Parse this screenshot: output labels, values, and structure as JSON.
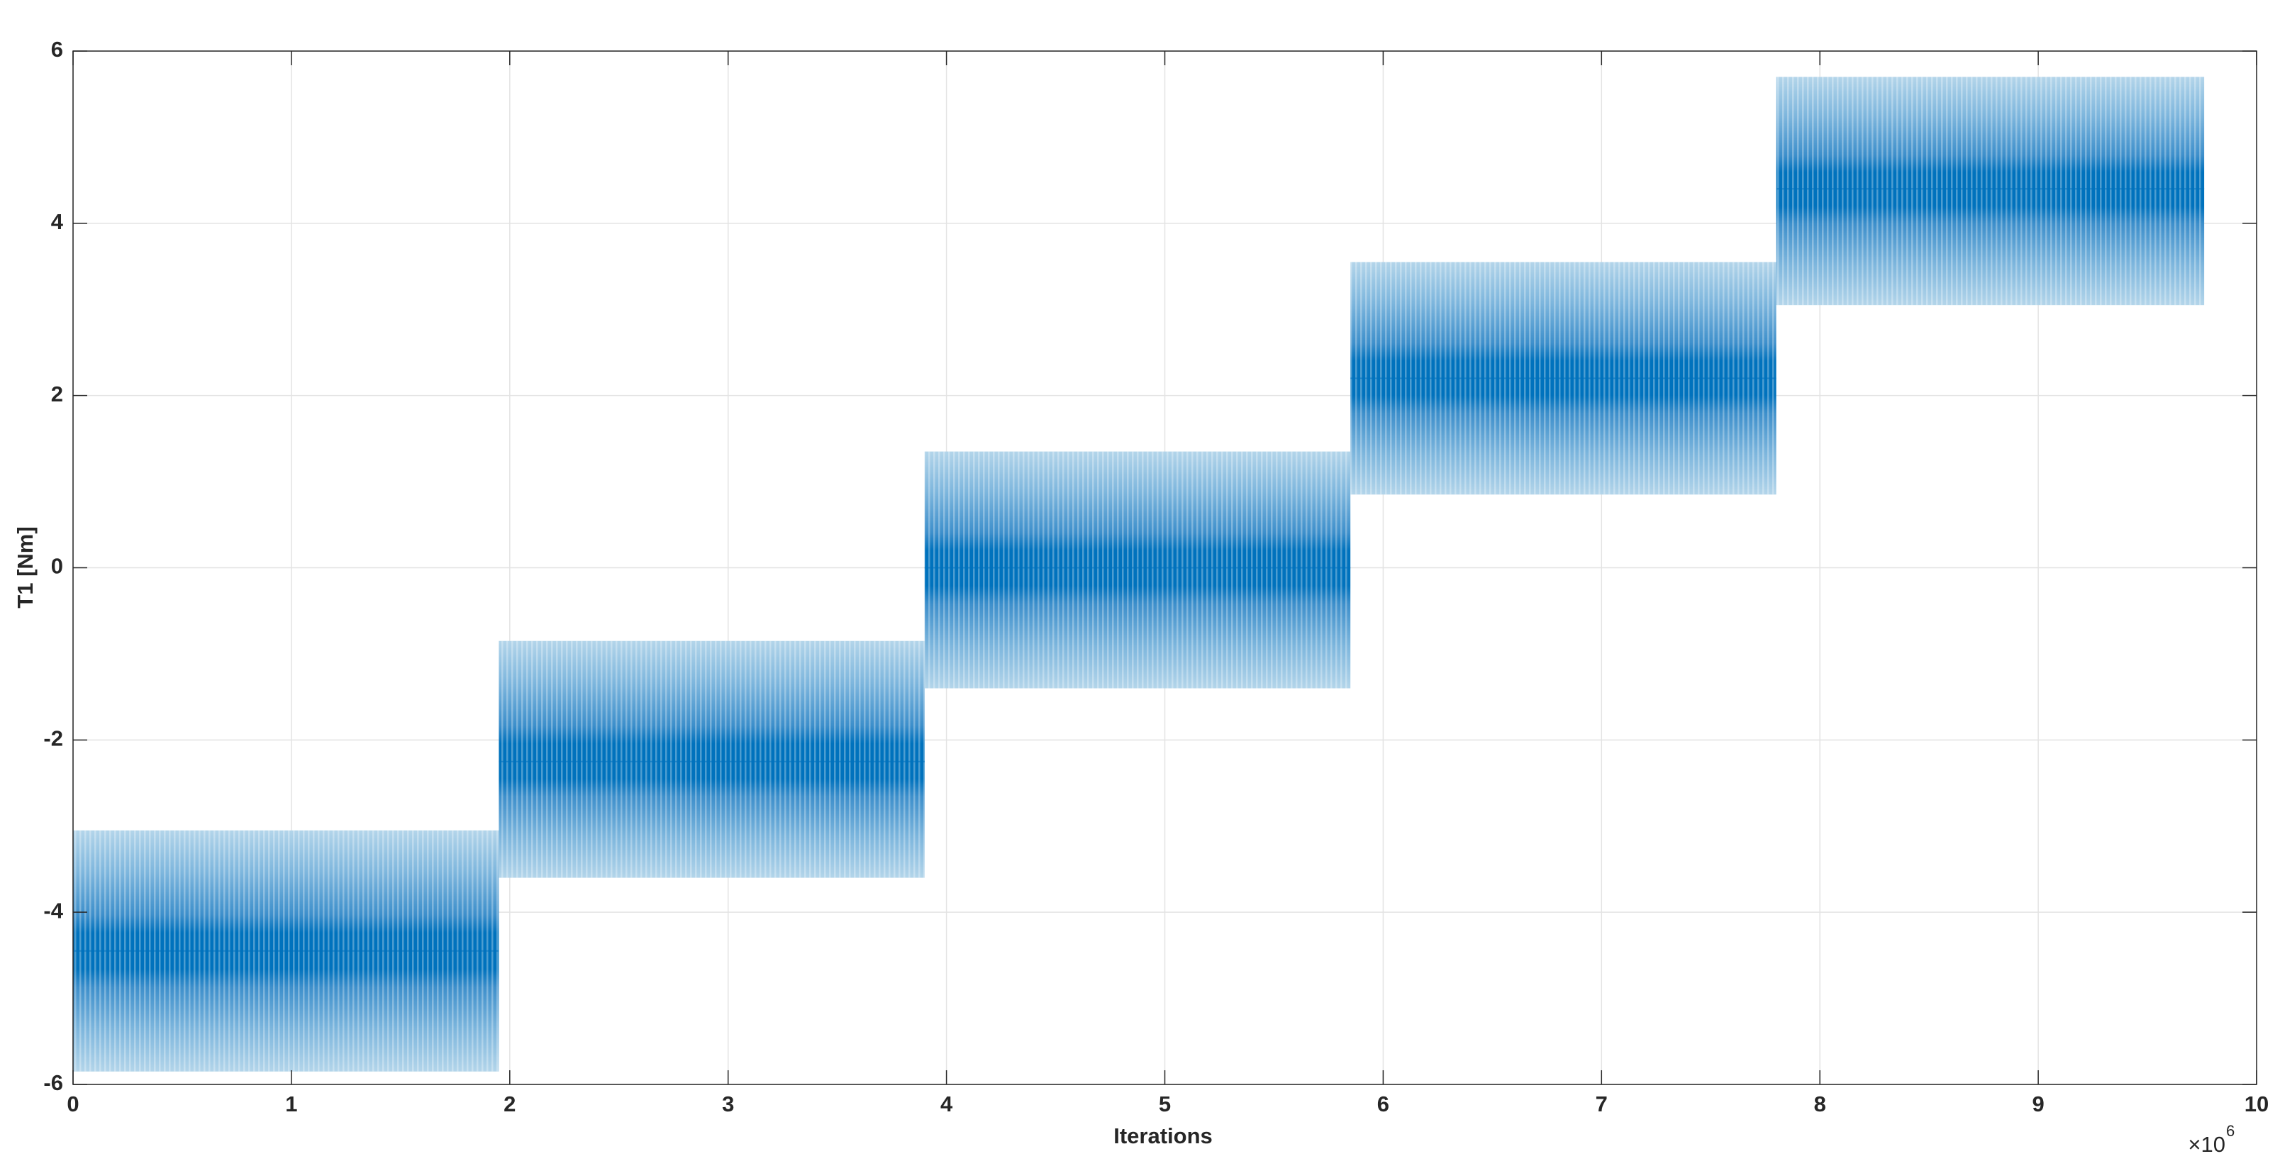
{
  "chart_data": {
    "type": "band",
    "xlabel": "Iterations",
    "ylabel": "T1 [Nm]",
    "x_multiplier": {
      "base": "×10",
      "exponent": "6"
    },
    "x_start": [
      0,
      1.95,
      3.9,
      5.85,
      7.8
    ],
    "x_end": [
      1.95,
      3.9,
      5.85,
      7.8,
      9.76
    ],
    "lower": [
      -5.85,
      -3.6,
      -1.4,
      0.85,
      3.05
    ],
    "upper": [
      -3.05,
      -0.85,
      1.35,
      3.55,
      5.7
    ],
    "mean": [
      -4.45,
      -2.25,
      0,
      2.2,
      4.4
    ],
    "color": "#0072bd",
    "xlim": [
      0,
      10
    ],
    "xticks": [
      0,
      1,
      2,
      3,
      4,
      5,
      6,
      7,
      8,
      9,
      10
    ],
    "ylim": [
      -6,
      6
    ],
    "yticks": [
      -6,
      -4,
      -2,
      0,
      2,
      4,
      6
    ],
    "grid": true
  }
}
